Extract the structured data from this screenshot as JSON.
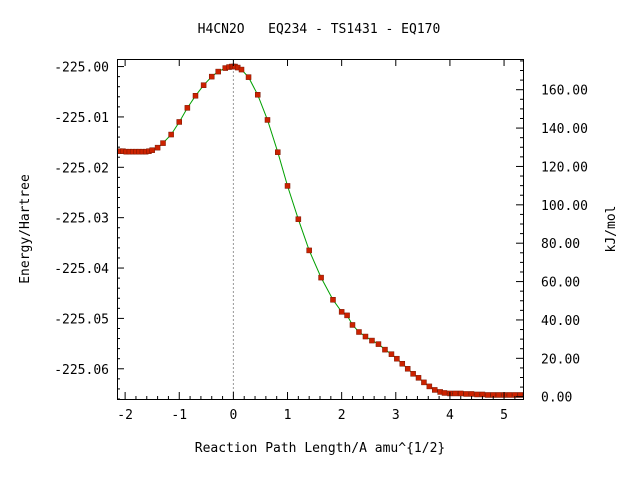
{
  "chart_data": {
    "type": "line",
    "title": "H4CN2O   EQ234 - TS1431 - EQ170",
    "xlabel": "Reaction Path Length/A amu^{1/2}",
    "ylabel": "Energy/Hartree",
    "y2label": "kJ/mol",
    "xlim": [
      -2.15,
      5.35
    ],
    "ylim": [
      -225.066,
      -224.9985
    ],
    "y2lim": [
      -1.2,
      176.0
    ],
    "x_ticks": [
      "-2",
      "-1",
      "0",
      "1",
      "2",
      "3",
      "4",
      "5"
    ],
    "x_tick_values": [
      -2,
      -1,
      0,
      1,
      2,
      3,
      4,
      5
    ],
    "y_ticks": [
      "-225.00",
      "-225.01",
      "-225.02",
      "-225.03",
      "-225.04",
      "-225.05",
      "-225.06"
    ],
    "y_tick_values": [
      -225.0,
      -225.01,
      -225.02,
      -225.03,
      -225.04,
      -225.05,
      -225.06
    ],
    "y2_ticks": [
      "0.00",
      "20.00",
      "40.00",
      "60.00",
      "80.00",
      "100.00",
      "120.00",
      "140.00",
      "160.00"
    ],
    "y2_tick_values": [
      0,
      20,
      40,
      60,
      80,
      100,
      120,
      140,
      160
    ],
    "reference_line_x": 0,
    "grid": false,
    "series": [
      {
        "line_color": "#00a000",
        "marker_color": "#cc2200",
        "x": [
          -2.1,
          -2.04,
          -1.98,
          -1.92,
          -1.86,
          -1.8,
          -1.74,
          -1.68,
          -1.62,
          -1.56,
          -1.5,
          -1.4,
          -1.3,
          -1.15,
          -1.0,
          -0.85,
          -0.7,
          -0.55,
          -0.4,
          -0.28,
          -0.15,
          -0.08,
          -0.03,
          0.0,
          0.03,
          0.08,
          0.15,
          0.28,
          0.45,
          0.63,
          0.82,
          1.0,
          1.2,
          1.4,
          1.62,
          1.84,
          2.0,
          2.1,
          2.2,
          2.32,
          2.44,
          2.56,
          2.68,
          2.8,
          2.92,
          3.02,
          3.12,
          3.22,
          3.32,
          3.42,
          3.52,
          3.62,
          3.72,
          3.82,
          3.9,
          4.0,
          4.1,
          4.2,
          4.3,
          4.4,
          4.5,
          4.6,
          4.7,
          4.8,
          4.9,
          5.0,
          5.1,
          5.2,
          5.3
        ],
        "y": [
          -225.0168,
          -225.0168,
          -225.0169,
          -225.0169,
          -225.0169,
          -225.0169,
          -225.0169,
          -225.0169,
          -225.0169,
          -225.0168,
          -225.0166,
          -225.0161,
          -225.0152,
          -225.0135,
          -225.011,
          -225.0082,
          -225.0058,
          -225.0037,
          -225.002,
          -225.001,
          -225.0003,
          -225.0001,
          -225.0,
          -225.0,
          -225.0,
          -225.0002,
          -225.0006,
          -225.0021,
          -225.0056,
          -225.0106,
          -225.017,
          -225.0237,
          -225.0303,
          -225.0365,
          -225.0419,
          -225.0463,
          -225.0487,
          -225.0494,
          -225.0513,
          -225.0527,
          -225.0536,
          -225.0544,
          -225.0551,
          -225.0562,
          -225.0571,
          -225.058,
          -225.059,
          -225.06,
          -225.061,
          -225.0618,
          -225.0627,
          -225.0635,
          -225.0642,
          -225.0646,
          -225.0648,
          -225.0649,
          -225.0649,
          -225.0649,
          -225.065,
          -225.065,
          -225.0651,
          -225.0651,
          -225.0652,
          -225.0652,
          -225.0652,
          -225.0652,
          -225.0652,
          -225.0652,
          -225.0652
        ]
      }
    ]
  }
}
